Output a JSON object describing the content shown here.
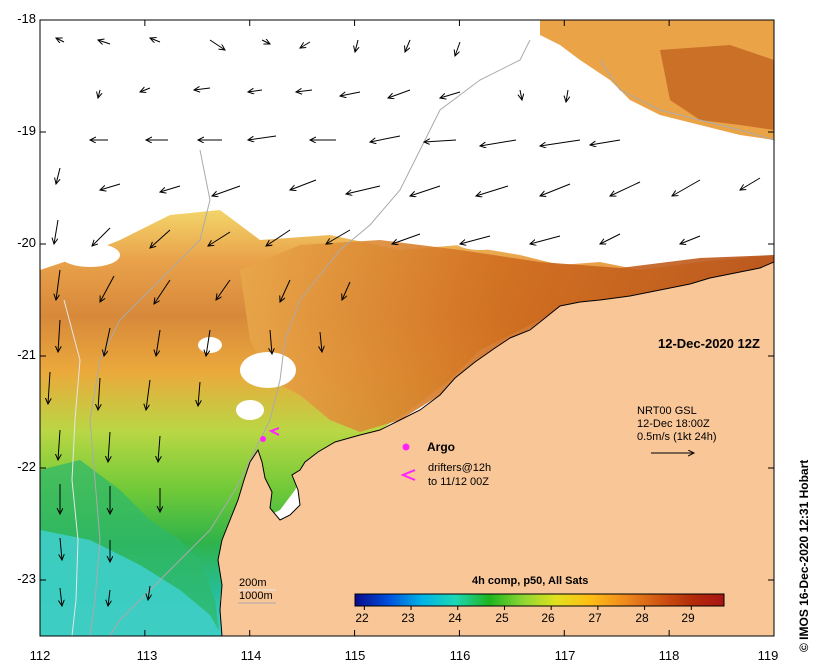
{
  "map": {
    "title": "12-Dec-2020 12Z",
    "lat_ticks": [
      "-18",
      "-19",
      "-20",
      "-21",
      "-22",
      "-23"
    ],
    "lon_ticks": [
      "112",
      "113",
      "114",
      "115",
      "116",
      "117",
      "118",
      "119"
    ],
    "lon_range": [
      112,
      119
    ],
    "lat_range": [
      -23.5,
      -18
    ],
    "colors": {
      "land": "#f9c698",
      "cloud": "#ffffff",
      "isobath": "#aaaaaa",
      "arrow": "#000000",
      "argo": "#ff22ff"
    }
  },
  "vector_legend": {
    "line1": "NRT00 GSL",
    "line2": "12-Dec 18:00Z",
    "line3": "0.5m/s (1kt 24h)"
  },
  "markers": {
    "argo_label": "Argo",
    "drifter_line1": "drifters@12h",
    "drifter_line2": "to 11/12 00Z",
    "argo_symbol": "argo-float",
    "drifter_symbol": "drifter-chevron"
  },
  "depth_legend": {
    "shallow": "200m",
    "deep": "1000m"
  },
  "colorbar": {
    "title": "4h comp, p50, All Sats",
    "ticks": [
      "22",
      "23",
      "24",
      "25",
      "26",
      "27",
      "28",
      "29"
    ],
    "range": [
      21.8,
      29.7
    ],
    "stops": [
      "#0a0a8c",
      "#0050dc",
      "#00b4e6",
      "#1ed7b4",
      "#1eb41e",
      "#8cd732",
      "#e1e11e",
      "#ffbe14",
      "#f08c1e",
      "#d25a14",
      "#b42d0a",
      "#aa1414"
    ]
  },
  "credit": "© IMOS 16-Dec-2020 12:31 Hobart"
}
